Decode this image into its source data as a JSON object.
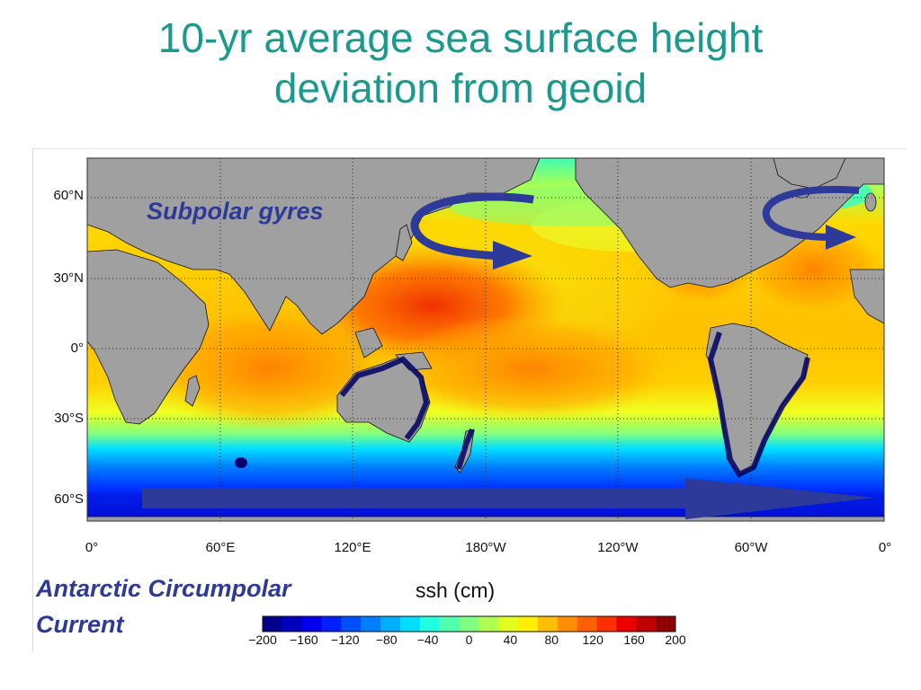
{
  "slide": {
    "title_line1": "10-yr average sea surface height",
    "title_line2": "deviation from geoid"
  },
  "map": {
    "lat_labels": [
      "60°N",
      "30°N",
      "0°",
      "30°S",
      "60°S"
    ],
    "lon_labels": [
      "0°",
      "60°E",
      "120°E",
      "180°W",
      "120°W",
      "60°W",
      "0°"
    ],
    "land_color": "#a0a0a0",
    "grid": "dotted"
  },
  "annotations": {
    "subpolar_gyres": "Subpolar gyres",
    "acc_line1": "Antarctic Circumpolar",
    "acc_line2": "Current",
    "arrow_color": "#2d3a9a"
  },
  "colorbar": {
    "title": "ssh (cm)",
    "ticks": [
      "−200",
      "−160",
      "−120",
      "−80",
      "−40",
      "0",
      "40",
      "80",
      "120",
      "160",
      "200"
    ],
    "colors": [
      "#00008f",
      "#0000bf",
      "#0000ef",
      "#0020ff",
      "#0050ff",
      "#0080ff",
      "#00afff",
      "#00dfff",
      "#20ffdf",
      "#50ffaf",
      "#80ff80",
      "#afff50",
      "#dfff20",
      "#ffef00",
      "#ffbf00",
      "#ff8f00",
      "#ff6000",
      "#ff3000",
      "#ef0000",
      "#bf0000",
      "#8f0000"
    ]
  }
}
